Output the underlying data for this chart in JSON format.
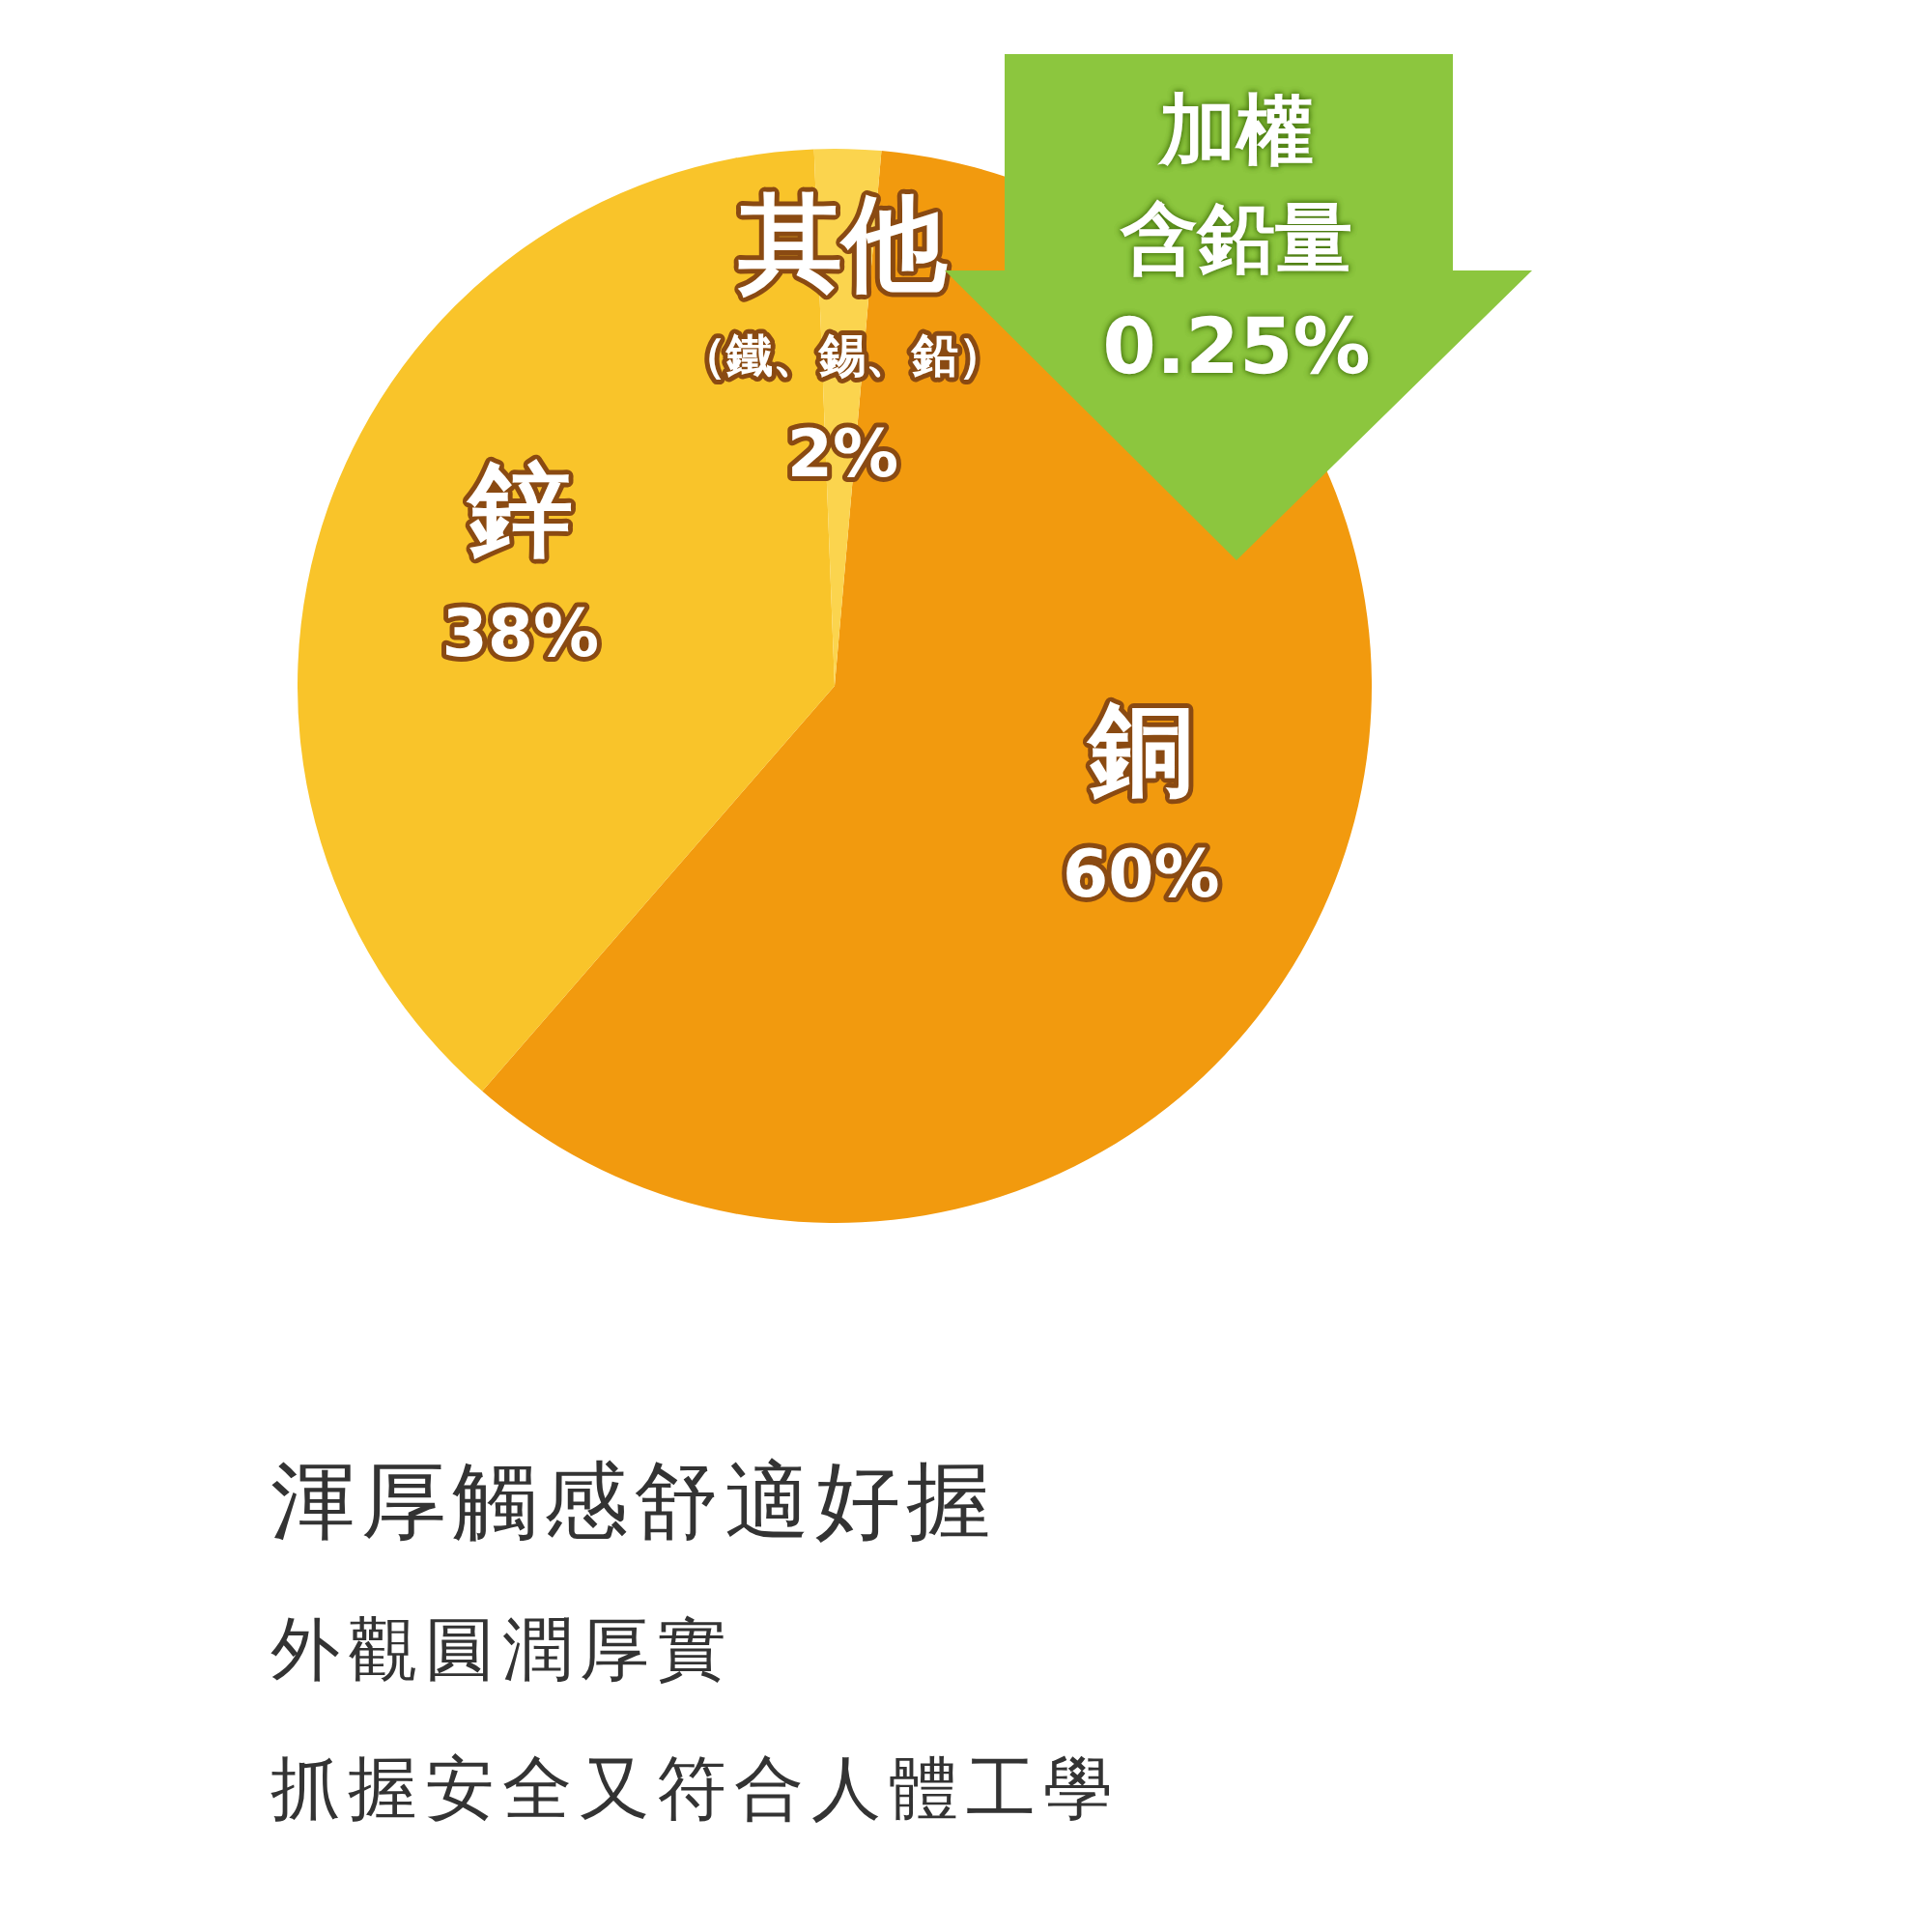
{
  "chart_data": {
    "type": "pie",
    "title": "渾厚觸感舒適好握",
    "categories": [
      "銅",
      "鋅",
      "其他"
    ],
    "values": [
      60,
      38,
      2
    ],
    "value_labels": [
      "60%",
      "38%",
      "2%"
    ],
    "colors": [
      "#f29a0e",
      "#f9c42a",
      "#fbd44e"
    ],
    "annotations": [
      "加權",
      "含鉛量",
      "0.25%",
      {
        "text": "（鐵、錫、鉛）",
        "x": "其他"
      },
      "外觀圓潤厚實",
      "抓握安全又符合人體工學"
    ]
  }
}
